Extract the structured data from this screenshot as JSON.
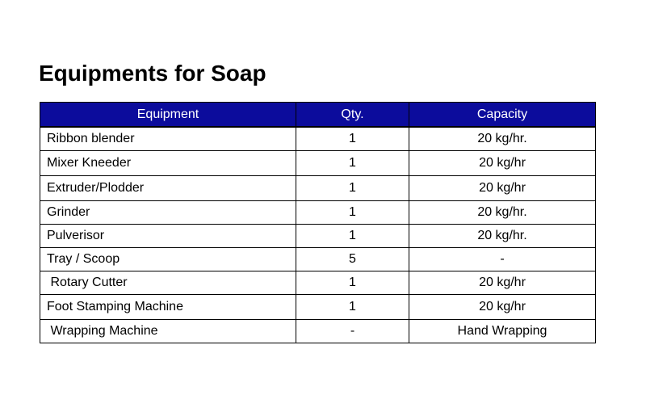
{
  "title": "Equipments for Soap",
  "table": {
    "headers": [
      "Equipment",
      "Qty.",
      "Capacity"
    ],
    "rows": [
      [
        "Ribbon blender",
        "1",
        "20 kg/hr."
      ],
      [
        "Mixer Kneeder",
        "1",
        "20 kg/hr"
      ],
      [
        "Extruder/Plodder",
        "1",
        "20 kg/hr"
      ],
      [
        "Grinder",
        "1",
        "20 kg/hr."
      ],
      [
        "Pulverisor",
        "1",
        "20 kg/hr."
      ],
      [
        "Tray / Scoop",
        "5",
        "-"
      ],
      [
        " Rotary Cutter",
        "1",
        "20 kg/hr"
      ],
      [
        "Foot Stamping Machine",
        "1",
        "20 kg/hr"
      ],
      [
        " Wrapping Machine",
        "-",
        "Hand Wrapping"
      ]
    ]
  },
  "colors": {
    "header_background": "#0c0c9c",
    "header_text": "#ffffff",
    "border": "#000000"
  }
}
